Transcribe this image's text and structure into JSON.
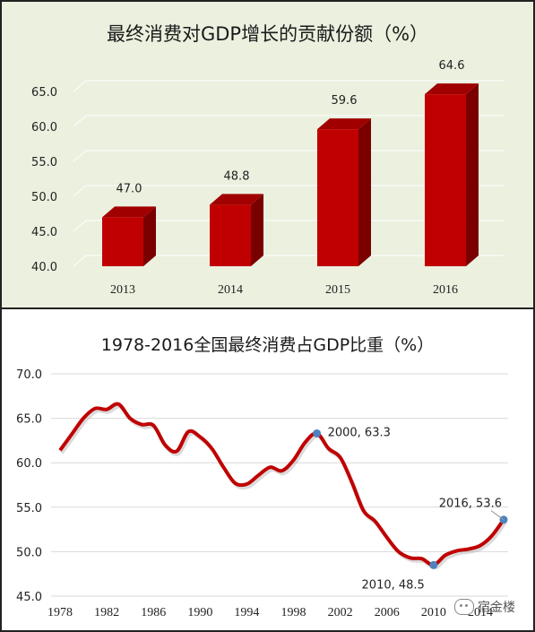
{
  "top_panel": {
    "title": "最终消费对GDP增长的贡献份额（%）"
  },
  "bottom_panel": {
    "title": "1978-2016全国最终消费占GDP比重（%）"
  },
  "watermark": "宿金楼",
  "colors": {
    "bar_front": "#c00000",
    "bar_side": "#7a0000",
    "bar_top": "#a00000",
    "line": "#c00000",
    "marker": "#4f81bd",
    "top_background": "#ebf0df"
  },
  "chart_data": [
    {
      "type": "bar",
      "title": "最终消费对GDP增长的贡献份额（%）",
      "categories": [
        "2013",
        "2014",
        "2015",
        "2016"
      ],
      "values": [
        47.0,
        48.8,
        59.6,
        64.6
      ],
      "data_labels": [
        "47.0",
        "48.8",
        "59.6",
        "64.6"
      ],
      "yticks": [
        "40.0",
        "45.0",
        "50.0",
        "55.0",
        "60.0",
        "65.0"
      ],
      "ylim": [
        40,
        65
      ],
      "style": "3d",
      "grid": true
    },
    {
      "type": "line",
      "title": "1978-2016全国最终消费占GDP比重（%）",
      "x": [
        1978,
        1979,
        1980,
        1981,
        1982,
        1983,
        1984,
        1985,
        1986,
        1987,
        1988,
        1989,
        1990,
        1991,
        1992,
        1993,
        1994,
        1995,
        1996,
        1997,
        1998,
        1999,
        2000,
        2001,
        2002,
        2003,
        2004,
        2005,
        2006,
        2007,
        2008,
        2009,
        2010,
        2011,
        2012,
        2013,
        2014,
        2015,
        2016
      ],
      "values": [
        61.4,
        63.2,
        65.0,
        66.1,
        66.0,
        66.6,
        65.0,
        64.3,
        64.2,
        62.0,
        61.3,
        63.5,
        62.9,
        61.6,
        59.5,
        57.7,
        57.6,
        58.6,
        59.5,
        59.1,
        60.3,
        62.3,
        63.3,
        61.6,
        60.6,
        57.8,
        54.6,
        53.4,
        51.6,
        50.0,
        49.3,
        49.2,
        48.5,
        49.6,
        50.1,
        50.3,
        50.7,
        51.8,
        53.6
      ],
      "xticks": [
        "1978",
        "1982",
        "1986",
        "1990",
        "1994",
        "1998",
        "2002",
        "2006",
        "2010",
        "2014"
      ],
      "yticks": [
        "45.0",
        "50.0",
        "55.0",
        "60.0",
        "65.0",
        "70.0"
      ],
      "ylim": [
        45,
        70
      ],
      "grid": true,
      "annotations": [
        {
          "x": 2000,
          "y": 63.3,
          "label": "2000, 63.3"
        },
        {
          "x": 2010,
          "y": 48.5,
          "label": "2010, 48.5"
        },
        {
          "x": 2016,
          "y": 53.6,
          "label": "2016, 53.6"
        }
      ]
    }
  ]
}
